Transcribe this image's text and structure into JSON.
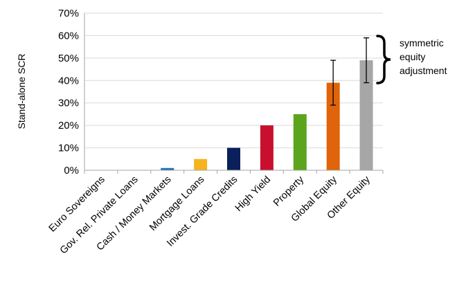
{
  "chart_data": {
    "type": "bar",
    "ylabel": "Stand-alone SCR",
    "xlabel": "",
    "ylim": [
      0,
      0.7
    ],
    "yticks": [
      0,
      0.1,
      0.2,
      0.3,
      0.4,
      0.5,
      0.6,
      0.7
    ],
    "ytick_labels": [
      "0%",
      "10%",
      "20%",
      "30%",
      "40%",
      "50%",
      "60%",
      "70%"
    ],
    "grid": true,
    "categories": [
      "Euro Sovereigns",
      "Gov. Rel. Private Loans",
      "Cash / Money Markets",
      "Mortgage Loans",
      "Invest. Grade Credits",
      "High Yield",
      "Property",
      "Global Equity",
      "Other Equity"
    ],
    "values": [
      0,
      0,
      0.01,
      0.05,
      0.1,
      0.2,
      0.25,
      0.39,
      0.49
    ],
    "colors": [
      "#1f5fa8",
      "#1f5fa8",
      "#1f6fb8",
      "#f5b31f",
      "#0a1f5c",
      "#c8102e",
      "#5aa51c",
      "#e0640a",
      "#a6a6a6"
    ],
    "error_bars": [
      null,
      null,
      null,
      null,
      null,
      null,
      null,
      [
        0.29,
        0.49
      ],
      [
        0.39,
        0.59
      ]
    ],
    "annotation": {
      "lines": [
        "symmetric",
        "equity",
        "adjustment"
      ]
    }
  }
}
